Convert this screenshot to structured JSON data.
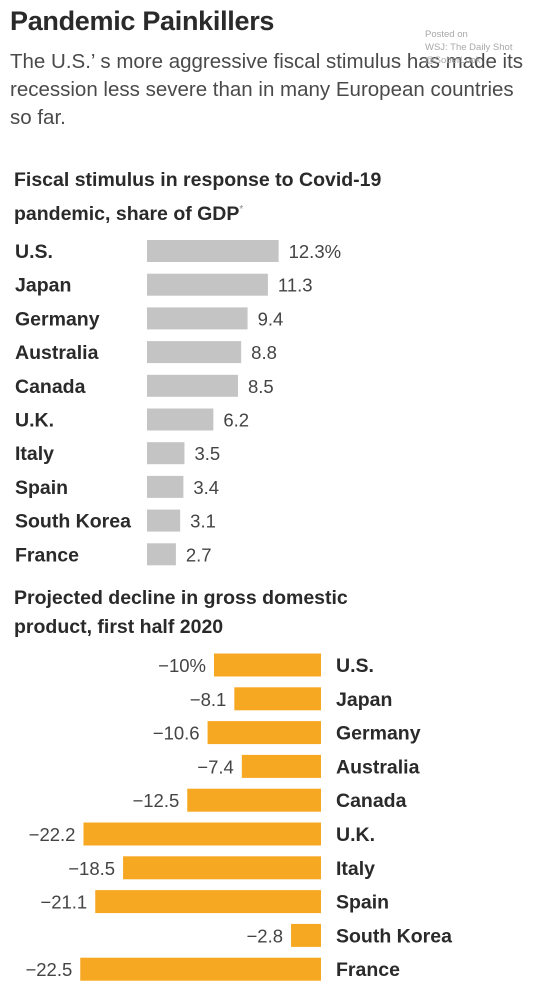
{
  "headline": "Pandemic Painkillers",
  "dek": "The U.S.’ s more aggressive fiscal stimulus has made its recession less severe than in many European countries so far.",
  "watermark": [
    "Posted on",
    "WSJ: The Daily Shot",
    "@SoberLook"
  ],
  "colors": {
    "stimulus_bar": "#c4c4c4",
    "gdp_bar": "#f7a823"
  },
  "chart_data": [
    {
      "type": "bar",
      "orientation": "horizontal",
      "title": "Fiscal stimulus in response to Covid-19 pandemic, share of GDP",
      "title_note": "*",
      "categories": [
        "U.S.",
        "Japan",
        "Germany",
        "Australia",
        "Canada",
        "U.K.",
        "Italy",
        "Spain",
        "South Korea",
        "France"
      ],
      "values": [
        12.3,
        11.3,
        9.4,
        8.8,
        8.5,
        6.2,
        3.5,
        3.4,
        3.1,
        2.7
      ],
      "value_labels": [
        "12.3%",
        "11.3",
        "9.4",
        "8.8",
        "8.5",
        "6.2",
        "3.5",
        "3.4",
        "3.1",
        "2.7"
      ]
    },
    {
      "type": "bar",
      "orientation": "horizontal",
      "title": "Projected decline in gross domestic product, first half 2020",
      "categories": [
        "U.S.",
        "Japan",
        "Germany",
        "Australia",
        "Canada",
        "U.K.",
        "Italy",
        "Spain",
        "South Korea",
        "France"
      ],
      "values": [
        -10,
        -8.1,
        -10.6,
        -7.4,
        -12.5,
        -22.2,
        -18.5,
        -21.1,
        -2.8,
        -22.5
      ],
      "value_labels": [
        "−10%",
        "−8.1",
        "−10.6",
        "−7.4",
        "−12.5",
        "−22.2",
        "−18.5",
        "−21.1",
        "−2.8",
        "−22.5"
      ]
    }
  ]
}
